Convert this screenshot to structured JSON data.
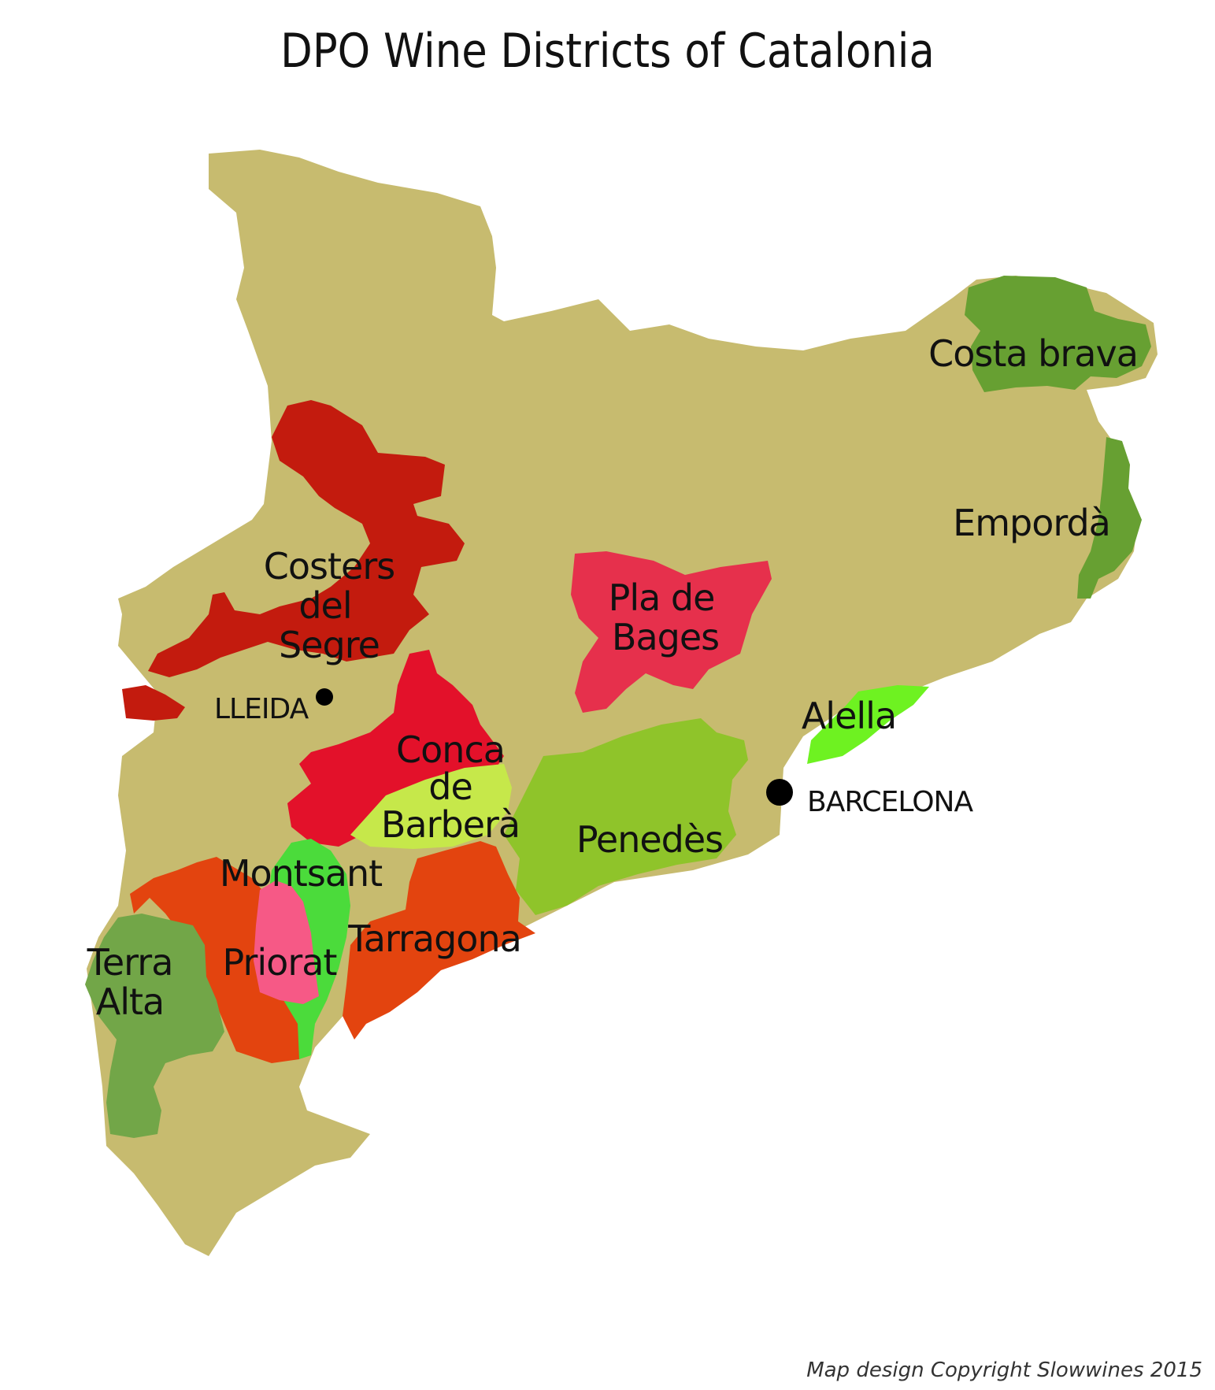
{
  "title": "DPO Wine Districts of Catalonia",
  "copyright": "Map design Copyright Slowwines 2015",
  "colors": {
    "land": "#c7bb6f",
    "costers_del_segre": "#c31b0e",
    "conca_de_barbera": "#e3112a",
    "conca_de_barbera_light": "#c6e84a",
    "pla_de_bages": "#e6304c",
    "penedes": "#8fc42a",
    "alella": "#6ef221",
    "costa_brava": "#67a032",
    "emporda": "#67a032",
    "montsant": "#4bdb3b",
    "priorat": "#f65986",
    "tarragona": "#e3440f",
    "terra_alta": "#72a648",
    "city_dot": "#000000"
  },
  "regions": {
    "costa_brava": [
      "Costa brava"
    ],
    "emporda": [
      "Empordà"
    ],
    "costers_del_segre": [
      "Costers",
      "del",
      "Segre"
    ],
    "pla_de_bages": [
      "Pla de",
      "Bages"
    ],
    "conca_de_barbera": [
      "Conca",
      "de",
      "Barberà"
    ],
    "alella": [
      "Alella"
    ],
    "penedes": [
      "Penedès"
    ],
    "montsant": [
      "Montsant"
    ],
    "tarragona": [
      "Tarragona"
    ],
    "priorat": [
      "Priorat"
    ],
    "terra_alta": [
      "Terra",
      "Alta"
    ]
  },
  "cities": {
    "lleida": "LLEIDA",
    "barcelona": "BARCELONA"
  }
}
